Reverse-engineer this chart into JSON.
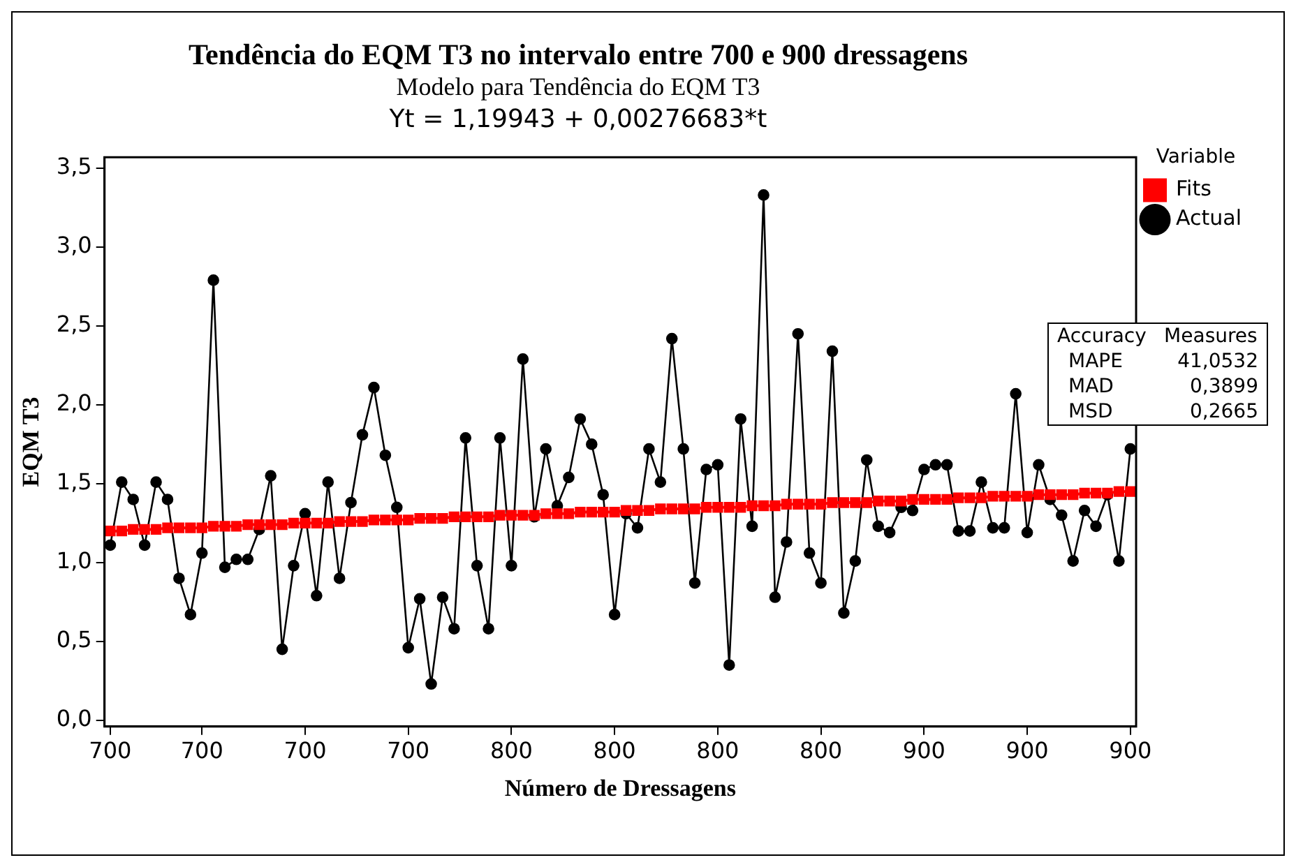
{
  "chart_data": {
    "type": "line",
    "title": "Tendência do EQM T3 no intervalo entre 700 e 900 dressagens",
    "subtitle": "Modelo para Tendência do EQM T3",
    "xlabel": "Número de Dressagens",
    "ylabel": "EQM T3",
    "legend_title": "Variable",
    "annotations": [
      "Yt = 1,19943 + 0,00276683*t",
      "Accuracy Measures",
      "MAPE 41,0532",
      "MAD 0,3899",
      "MSD 0,2665"
    ],
    "categories": [
      "700",
      null,
      null,
      null,
      null,
      null,
      null,
      null,
      "700",
      null,
      null,
      null,
      null,
      null,
      null,
      null,
      null,
      "700",
      null,
      null,
      null,
      null,
      null,
      null,
      null,
      null,
      "700",
      null,
      null,
      null,
      null,
      null,
      null,
      null,
      null,
      "800",
      null,
      null,
      null,
      null,
      null,
      null,
      null,
      null,
      "800",
      null,
      null,
      null,
      null,
      null,
      null,
      null,
      null,
      "800",
      null,
      null,
      null,
      null,
      null,
      null,
      null,
      null,
      "800",
      null,
      null,
      null,
      null,
      null,
      null,
      null,
      null,
      "900",
      null,
      null,
      null,
      null,
      null,
      null,
      null,
      null,
      "900",
      null,
      null,
      null,
      null,
      null,
      null,
      null,
      null,
      "900"
    ],
    "series": [
      {
        "name": "Actual",
        "color": "#000000",
        "marker": "circle",
        "values": [
          1.11,
          1.51,
          1.4,
          1.11,
          1.51,
          1.4,
          0.9,
          0.67,
          1.06,
          2.79,
          0.97,
          1.02,
          1.02,
          1.21,
          1.55,
          0.45,
          0.98,
          1.31,
          0.79,
          1.51,
          0.9,
          1.38,
          1.81,
          2.11,
          1.68,
          1.35,
          0.46,
          0.77,
          0.23,
          0.78,
          0.58,
          1.79,
          0.98,
          0.58,
          1.79,
          0.98,
          2.29,
          1.29,
          1.72,
          1.36,
          1.54,
          1.91,
          1.75,
          1.43,
          0.67,
          1.31,
          1.22,
          1.72,
          1.51,
          2.42,
          1.72,
          0.87,
          1.59,
          1.62,
          0.35,
          1.91,
          1.23,
          3.33,
          0.78,
          1.13,
          2.45,
          1.06,
          0.87,
          2.34,
          0.68,
          1.01,
          1.65,
          1.23,
          1.19,
          1.35,
          1.33,
          1.59,
          1.62,
          1.62,
          1.2,
          1.2,
          1.51,
          1.22,
          1.22,
          2.07,
          1.19,
          1.62,
          1.4,
          1.3,
          1.01,
          1.33,
          1.23,
          1.43,
          1.01,
          1.72
        ]
      },
      {
        "name": "Fits",
        "color": "#ff0000",
        "marker": "square",
        "values": [
          1.2,
          1.2,
          1.21,
          1.21,
          1.21,
          1.22,
          1.22,
          1.22,
          1.22,
          1.23,
          1.23,
          1.23,
          1.24,
          1.24,
          1.24,
          1.24,
          1.25,
          1.25,
          1.25,
          1.25,
          1.26,
          1.26,
          1.26,
          1.27,
          1.27,
          1.27,
          1.27,
          1.28,
          1.28,
          1.28,
          1.29,
          1.29,
          1.29,
          1.29,
          1.3,
          1.3,
          1.3,
          1.3,
          1.31,
          1.31,
          1.31,
          1.32,
          1.32,
          1.32,
          1.32,
          1.33,
          1.33,
          1.33,
          1.34,
          1.34,
          1.34,
          1.34,
          1.35,
          1.35,
          1.35,
          1.35,
          1.36,
          1.36,
          1.36,
          1.37,
          1.37,
          1.37,
          1.37,
          1.38,
          1.38,
          1.38,
          1.38,
          1.39,
          1.39,
          1.39,
          1.4,
          1.4,
          1.4,
          1.4,
          1.41,
          1.41,
          1.41,
          1.42,
          1.42,
          1.42,
          1.42,
          1.43,
          1.43,
          1.43,
          1.43,
          1.44,
          1.44,
          1.44,
          1.45,
          1.45
        ]
      }
    ],
    "ylim": [
      -0.04,
      3.57
    ],
    "yticks": [
      {
        "value": 0,
        "label": "0,0"
      },
      {
        "value": 0.5,
        "label": "0,5"
      },
      {
        "value": 1,
        "label": "1,0"
      },
      {
        "value": 1.5,
        "label": "1,5"
      },
      {
        "value": 2,
        "label": "2,0"
      },
      {
        "value": 2.5,
        "label": "2,5"
      },
      {
        "value": 3,
        "label": "3,0"
      },
      {
        "value": 3.5,
        "label": "3,5"
      }
    ],
    "grid": false,
    "legend": "top right",
    "line_style": "solid"
  }
}
